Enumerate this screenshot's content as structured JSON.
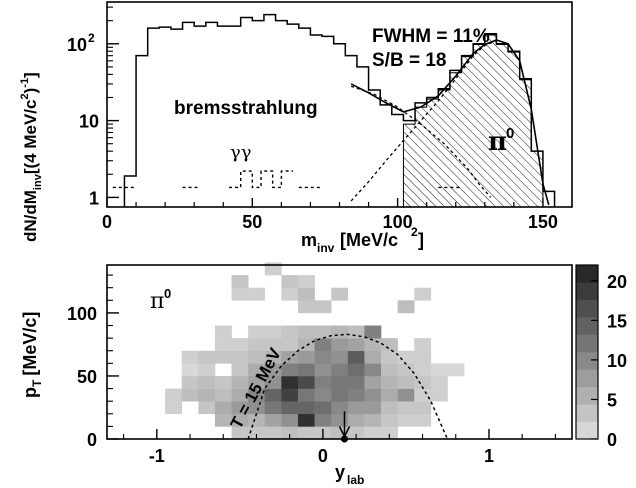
{
  "chart_data": [
    {
      "type": "histogram",
      "panel": "top",
      "xlabel_main": "m",
      "xlabel_sub": "inv",
      "xlabel_unit": "[MeV/c",
      "xlabel_pow": "2",
      "xlabel_end": "]",
      "ylabel": "dN/dM",
      "ylabel_sub": "inv",
      "ylabel_unit": "[(4 MeV/c",
      "ylabel_pow1": "2",
      "ylabel_mid": ")",
      "ylabel_pow2": "-1",
      "ylabel_end": "]",
      "xlim": [
        0,
        160
      ],
      "ylim": [
        0.75,
        350
      ],
      "yscale": "log",
      "xticks": [
        0,
        50,
        100,
        150
      ],
      "ytick_labels": [
        {
          "value": 1,
          "base": "1",
          "pow": ""
        },
        {
          "value": 10,
          "base": "10",
          "pow": ""
        },
        {
          "value": 100,
          "base": "10",
          "pow": "2"
        }
      ],
      "annotations": {
        "fwhm": "FWHM = 11%",
        "sb": "S/B = 18",
        "brems": "bremsstrahlung",
        "gg": "γγ",
        "pi0": "π",
        "pi0_sup": "0"
      },
      "series": [
        {
          "role": "total",
          "style": "solid step",
          "edges": [
            6,
            10,
            14,
            18,
            22,
            26,
            30,
            34,
            38,
            42,
            46,
            50,
            54,
            58,
            62,
            66,
            70,
            74,
            78,
            82,
            86,
            90,
            94,
            98,
            102,
            106,
            110,
            114,
            118,
            122,
            126,
            130,
            134,
            138,
            142,
            146,
            150,
            154
          ],
          "values": [
            1.9,
            70,
            160,
            165,
            155,
            190,
            170,
            190,
            170,
            170,
            220,
            200,
            240,
            200,
            180,
            160,
            130,
            125,
            100,
            70,
            50,
            25,
            16,
            12,
            10,
            17,
            20,
            26,
            45,
            70,
            100,
            135,
            100,
            80,
            35,
            4,
            1.2
          ]
        },
        {
          "role": "gamma-gamma",
          "style": "dotted step",
          "segments": [
            {
              "x": [
                2,
                10
              ],
              "y": [
                1.35,
                1.35
              ]
            },
            {
              "x": [
                26,
                32
              ],
              "y": [
                1.35,
                1.35
              ]
            },
            {
              "x": [
                42,
                46,
                46,
                50,
                50,
                53,
                53,
                57,
                57,
                60,
                60,
                64
              ],
              "y": [
                1.35,
                1.35,
                2.2,
                2.2,
                1.35,
                1.35,
                2.2,
                2.2,
                1.35,
                1.35,
                2.2,
                2.2
              ]
            },
            {
              "x": [
                66,
                74
              ],
              "y": [
                1.35,
                1.35
              ]
            },
            {
              "x": [
                114,
                122
              ],
              "y": [
                1.35,
                1.35
              ]
            }
          ]
        },
        {
          "role": "bremsstrahlung-fit",
          "style": "dashed",
          "x": [
            84,
            92,
            100,
            108,
            116,
            124,
            128,
            132
          ],
          "y": [
            28,
            22,
            15,
            9,
            5,
            2.4,
            1.5,
            1.0
          ]
        },
        {
          "role": "pi0-fit",
          "style": "dashed",
          "x": [
            84,
            90,
            96,
            102,
            108,
            114,
            120,
            126,
            130,
            134
          ],
          "y": [
            0.9,
            1.6,
            3,
            5.5,
            10,
            18,
            35,
            70,
            95,
            110
          ]
        },
        {
          "role": "total-fit",
          "style": "solid",
          "x": [
            84,
            90,
            96,
            102,
            108,
            114,
            120,
            126,
            130,
            134,
            138,
            142,
            146,
            150,
            152
          ],
          "y": [
            30,
            23,
            17,
            13,
            15,
            21,
            38,
            75,
            98,
            112,
            100,
            60,
            14,
            1.5,
            0.8
          ]
        },
        {
          "role": "pi0-hatched-signal",
          "style": "hatched step",
          "edges": [
            102,
            106,
            110,
            114,
            118,
            122,
            126,
            130,
            134,
            138,
            142,
            146,
            150
          ],
          "values": [
            9,
            15,
            19,
            25,
            42,
            68,
            98,
            130,
            98,
            78,
            34,
            4
          ]
        }
      ]
    },
    {
      "type": "heatmap",
      "panel": "bottom",
      "xlabel": "y",
      "xlabel_sub": "lab",
      "ylabel": "p",
      "ylabel_sub": "T",
      "ylabel_unit": "[MeV/c]",
      "xlim": [
        -1.3,
        1.5
      ],
      "ylim": [
        0,
        138
      ],
      "xticks": [
        -1,
        0,
        1
      ],
      "yticks": [
        0,
        50,
        100
      ],
      "colorbar_ticks": [
        0,
        5,
        10,
        15,
        20
      ],
      "zlim": [
        0,
        22
      ],
      "annotations": {
        "pi0": "π",
        "pi0_sup": "0",
        "temp": "T = 15 MeV"
      },
      "bin_size": {
        "dx": 0.1,
        "dy": 10
      },
      "cells": [
        [
          -0.9,
          20,
          2
        ],
        [
          -0.9,
          30,
          2
        ],
        [
          -0.8,
          30,
          4
        ],
        [
          -0.8,
          40,
          3
        ],
        [
          -0.8,
          60,
          2
        ],
        [
          -0.8,
          50,
          1
        ],
        [
          -0.7,
          20,
          3
        ],
        [
          -0.7,
          30,
          5
        ],
        [
          -0.7,
          40,
          4
        ],
        [
          -0.7,
          50,
          2
        ],
        [
          -0.7,
          60,
          3
        ],
        [
          -0.6,
          10,
          5
        ],
        [
          -0.6,
          20,
          6
        ],
        [
          -0.6,
          30,
          4
        ],
        [
          -0.6,
          40,
          3
        ],
        [
          -0.6,
          60,
          3
        ],
        [
          -0.6,
          70,
          2
        ],
        [
          -0.6,
          80,
          2
        ],
        [
          -0.5,
          0,
          3
        ],
        [
          -0.5,
          10,
          6
        ],
        [
          -0.5,
          20,
          8
        ],
        [
          -0.5,
          30,
          6
        ],
        [
          -0.5,
          40,
          5
        ],
        [
          -0.5,
          50,
          3
        ],
        [
          -0.5,
          60,
          3
        ],
        [
          -0.5,
          70,
          2
        ],
        [
          -0.5,
          110,
          2
        ],
        [
          -0.5,
          120,
          3
        ],
        [
          -0.4,
          0,
          3
        ],
        [
          -0.4,
          10,
          5
        ],
        [
          -0.4,
          20,
          9
        ],
        [
          -0.4,
          30,
          10
        ],
        [
          -0.4,
          40,
          7
        ],
        [
          -0.4,
          50,
          6
        ],
        [
          -0.4,
          60,
          4
        ],
        [
          -0.4,
          70,
          3
        ],
        [
          -0.4,
          80,
          2
        ],
        [
          -0.4,
          110,
          2
        ],
        [
          -0.3,
          0,
          3
        ],
        [
          -0.3,
          10,
          7
        ],
        [
          -0.3,
          20,
          12
        ],
        [
          -0.3,
          30,
          14
        ],
        [
          -0.3,
          40,
          9
        ],
        [
          -0.3,
          50,
          8
        ],
        [
          -0.3,
          60,
          5
        ],
        [
          -0.3,
          70,
          3
        ],
        [
          -0.3,
          80,
          2
        ],
        [
          -0.3,
          130,
          2
        ],
        [
          -0.2,
          0,
          4
        ],
        [
          -0.2,
          10,
          9
        ],
        [
          -0.2,
          20,
          14
        ],
        [
          -0.2,
          30,
          18
        ],
        [
          -0.2,
          40,
          20
        ],
        [
          -0.2,
          50,
          11
        ],
        [
          -0.2,
          60,
          7
        ],
        [
          -0.2,
          70,
          3
        ],
        [
          -0.2,
          80,
          3
        ],
        [
          -0.2,
          110,
          2
        ],
        [
          -0.2,
          120,
          3
        ],
        [
          -0.1,
          0,
          3
        ],
        [
          -0.1,
          10,
          20
        ],
        [
          -0.1,
          20,
          14
        ],
        [
          -0.1,
          30,
          12
        ],
        [
          -0.1,
          40,
          17
        ],
        [
          -0.1,
          50,
          12
        ],
        [
          -0.1,
          60,
          8
        ],
        [
          -0.1,
          70,
          5
        ],
        [
          -0.1,
          80,
          4
        ],
        [
          -0.1,
          100,
          3
        ],
        [
          -0.1,
          110,
          4
        ],
        [
          -0.1,
          120,
          2
        ],
        [
          0.0,
          0,
          3
        ],
        [
          0.0,
          10,
          11
        ],
        [
          0.0,
          20,
          13
        ],
        [
          0.0,
          30,
          10
        ],
        [
          0.0,
          40,
          11
        ],
        [
          0.0,
          50,
          9
        ],
        [
          0.0,
          60,
          10
        ],
        [
          0.0,
          70,
          11
        ],
        [
          0.0,
          80,
          4
        ],
        [
          0.0,
          100,
          3
        ],
        [
          0.1,
          0,
          4
        ],
        [
          0.1,
          10,
          9
        ],
        [
          0.1,
          20,
          10
        ],
        [
          0.1,
          30,
          12
        ],
        [
          0.1,
          40,
          12
        ],
        [
          0.1,
          50,
          11
        ],
        [
          0.1,
          60,
          9
        ],
        [
          0.1,
          70,
          8
        ],
        [
          0.1,
          80,
          5
        ],
        [
          0.1,
          110,
          3
        ],
        [
          0.2,
          0,
          3
        ],
        [
          0.2,
          10,
          6
        ],
        [
          0.2,
          20,
          8
        ],
        [
          0.2,
          30,
          11
        ],
        [
          0.2,
          40,
          12
        ],
        [
          0.2,
          50,
          13
        ],
        [
          0.2,
          60,
          15
        ],
        [
          0.2,
          70,
          7
        ],
        [
          0.2,
          80,
          4
        ],
        [
          0.3,
          0,
          2
        ],
        [
          0.3,
          10,
          5
        ],
        [
          0.3,
          20,
          8
        ],
        [
          0.3,
          30,
          9
        ],
        [
          0.3,
          40,
          7
        ],
        [
          0.3,
          50,
          10
        ],
        [
          0.3,
          60,
          6
        ],
        [
          0.3,
          70,
          5
        ],
        [
          0.3,
          80,
          11
        ],
        [
          0.4,
          0,
          2
        ],
        [
          0.4,
          10,
          3
        ],
        [
          0.4,
          20,
          4
        ],
        [
          0.4,
          30,
          6
        ],
        [
          0.4,
          40,
          5
        ],
        [
          0.4,
          50,
          4
        ],
        [
          0.4,
          60,
          3
        ],
        [
          0.4,
          70,
          4
        ],
        [
          0.5,
          10,
          2
        ],
        [
          0.5,
          20,
          3
        ],
        [
          0.5,
          30,
          9
        ],
        [
          0.5,
          40,
          4
        ],
        [
          0.5,
          50,
          3
        ],
        [
          0.5,
          60,
          2
        ],
        [
          0.5,
          100,
          4
        ],
        [
          0.6,
          10,
          2
        ],
        [
          0.6,
          20,
          3
        ],
        [
          0.6,
          30,
          2
        ],
        [
          0.6,
          40,
          3
        ],
        [
          0.6,
          50,
          2
        ],
        [
          0.6,
          60,
          2
        ],
        [
          0.6,
          70,
          2
        ],
        [
          0.6,
          110,
          2
        ],
        [
          0.7,
          30,
          2
        ],
        [
          0.7,
          40,
          2
        ],
        [
          0.7,
          50,
          1
        ],
        [
          0.8,
          50,
          1
        ]
      ],
      "temperature_curve": {
        "x": [
          -0.45,
          -0.35,
          -0.25,
          -0.15,
          -0.05,
          0.05,
          0.15,
          0.25,
          0.35,
          0.45,
          0.55,
          0.65,
          0.75
        ],
        "y": [
          0,
          40,
          58,
          70,
          78,
          82,
          83,
          81,
          76,
          67,
          52,
          30,
          0
        ]
      },
      "marker": {
        "x": 0.13,
        "y": 0
      },
      "arrow": {
        "x": 0.13,
        "y_from": 22,
        "y_to": 2
      }
    }
  ]
}
